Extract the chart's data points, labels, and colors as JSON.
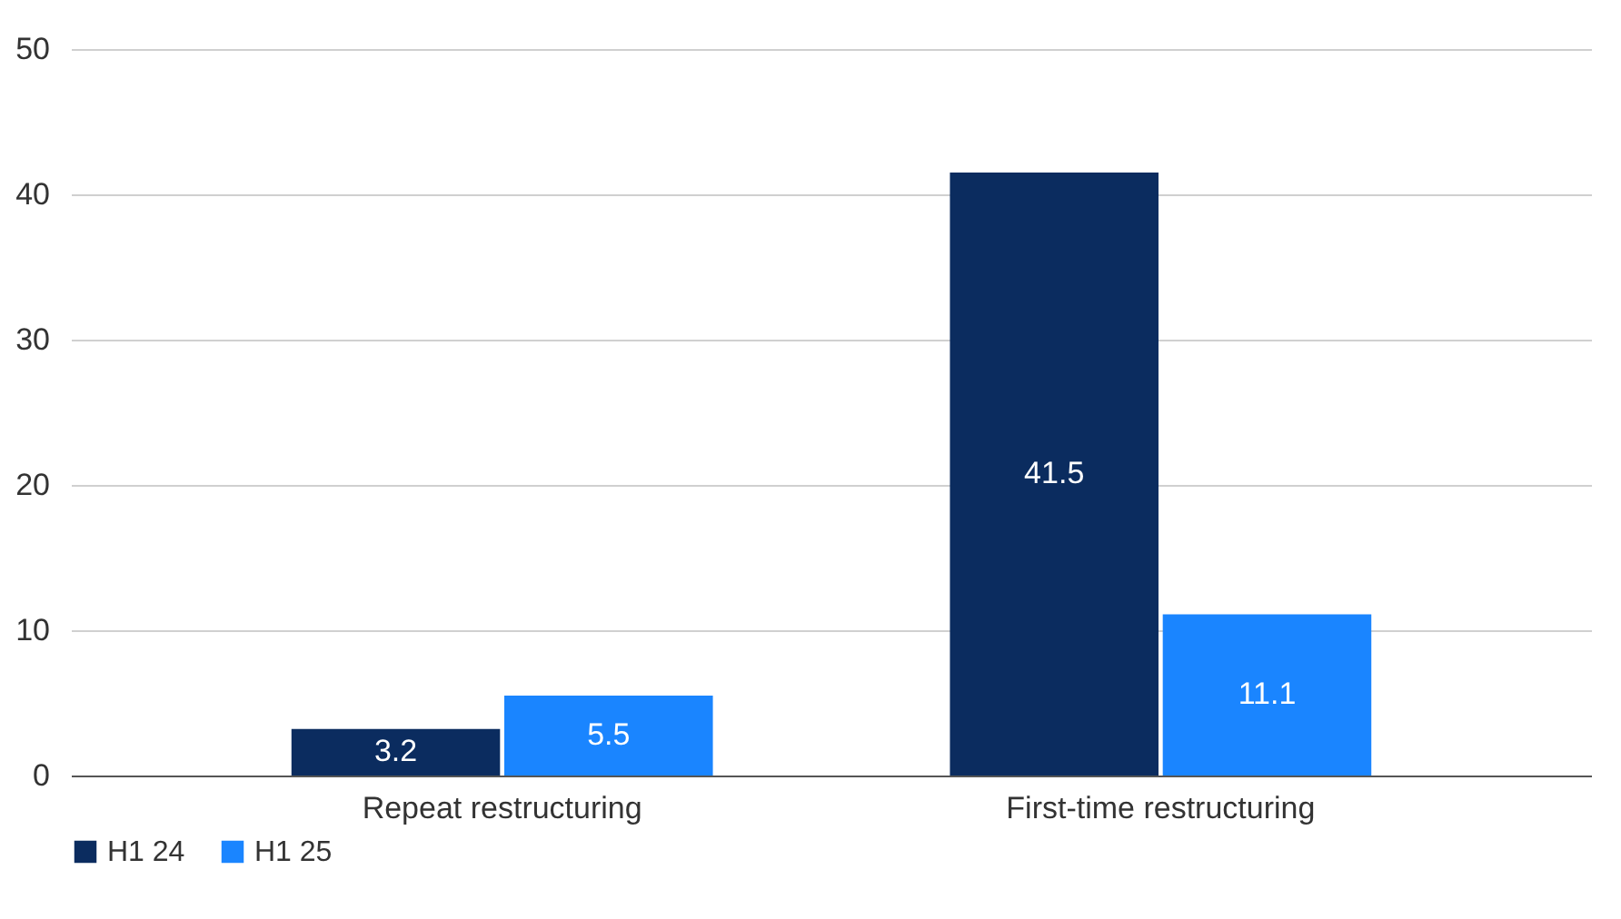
{
  "chart_data": {
    "type": "bar",
    "categories": [
      "Repeat restructuring",
      "First-time restructuring"
    ],
    "series": [
      {
        "name": "H1 24",
        "color": "#0b2c5f",
        "values": [
          3.2,
          41.5
        ]
      },
      {
        "name": "H1 25",
        "color": "#1a85ff",
        "values": [
          5.5,
          11.1
        ]
      }
    ],
    "ylim": [
      0,
      50
    ],
    "yticks": [
      0,
      10,
      20,
      30,
      40,
      50
    ],
    "grid": "y",
    "legend": "bottom",
    "data_labels": true
  }
}
